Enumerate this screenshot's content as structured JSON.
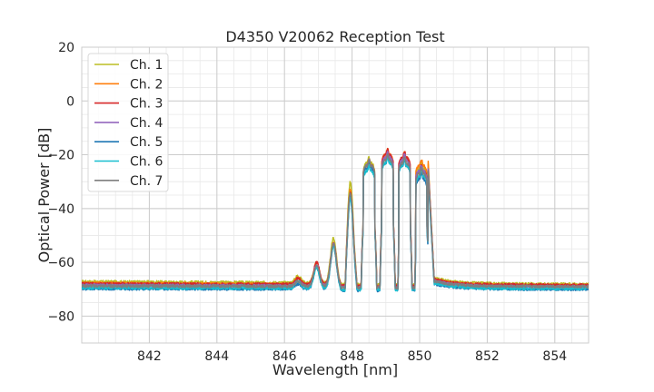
{
  "chart_data": {
    "type": "line",
    "title": "D4350 V20062 Reception Test",
    "xlabel": "Wavelength [nm]",
    "ylabel": "Optical Power [dB]",
    "xlim": [
      840.0,
      855.0
    ],
    "ylim": [
      -90,
      20
    ],
    "xticks": [
      842,
      844,
      846,
      848,
      850,
      852,
      854
    ],
    "xtick_labels": [
      "842",
      "844",
      "846",
      "848",
      "850",
      "852",
      "854"
    ],
    "yticks": [
      -80,
      -60,
      -40,
      -20,
      0,
      20
    ],
    "ytick_labels": [
      "−80",
      "−60",
      "−40",
      "−20",
      "0",
      "20"
    ],
    "grid": true,
    "legend_position": "upper-left",
    "series": [
      {
        "name": "Ch. 1",
        "color": "#bcbd22",
        "baseline": -67.2,
        "floor_right": -68.2,
        "peaks": [
          -65,
          -61,
          -51,
          -30,
          -21,
          -19,
          -20,
          -23
        ]
      },
      {
        "name": "Ch. 2",
        "color": "#ff7f0e",
        "baseline": -67.8,
        "floor_right": -68.8,
        "peaks": [
          -66,
          -60,
          -53,
          -33,
          -22,
          -18,
          -19,
          -22
        ]
      },
      {
        "name": "Ch. 3",
        "color": "#d62728",
        "baseline": -68.0,
        "floor_right": -68.5,
        "peaks": [
          -66,
          -60,
          -53,
          -34,
          -22,
          -18,
          -19,
          -24
        ]
      },
      {
        "name": "Ch. 4",
        "color": "#9467bd",
        "baseline": -68.5,
        "floor_right": -69.2,
        "peaks": [
          -67,
          -61,
          -53,
          -35,
          -22,
          -19,
          -20,
          -24
        ]
      },
      {
        "name": "Ch. 5",
        "color": "#1f77b4",
        "baseline": -69.8,
        "floor_right": -70.0,
        "peaks": [
          -68,
          -62,
          -54,
          -36,
          -23,
          -21,
          -22,
          -27
        ]
      },
      {
        "name": "Ch. 6",
        "color": "#17becf",
        "baseline": -69.5,
        "floor_right": -69.8,
        "peaks": [
          -67,
          -62,
          -54,
          -36,
          -24,
          -21,
          -22,
          -26
        ]
      },
      {
        "name": "Ch. 7",
        "color": "#7f7f7f",
        "baseline": -68.8,
        "floor_right": -69.0,
        "peaks": [
          -67,
          -61,
          -53,
          -34,
          -22,
          -20,
          -21,
          -25
        ]
      }
    ],
    "peak_wavelengths": [
      846.4,
      846.95,
      847.45,
      847.95,
      848.5,
      849.05,
      849.55,
      850.05
    ]
  }
}
